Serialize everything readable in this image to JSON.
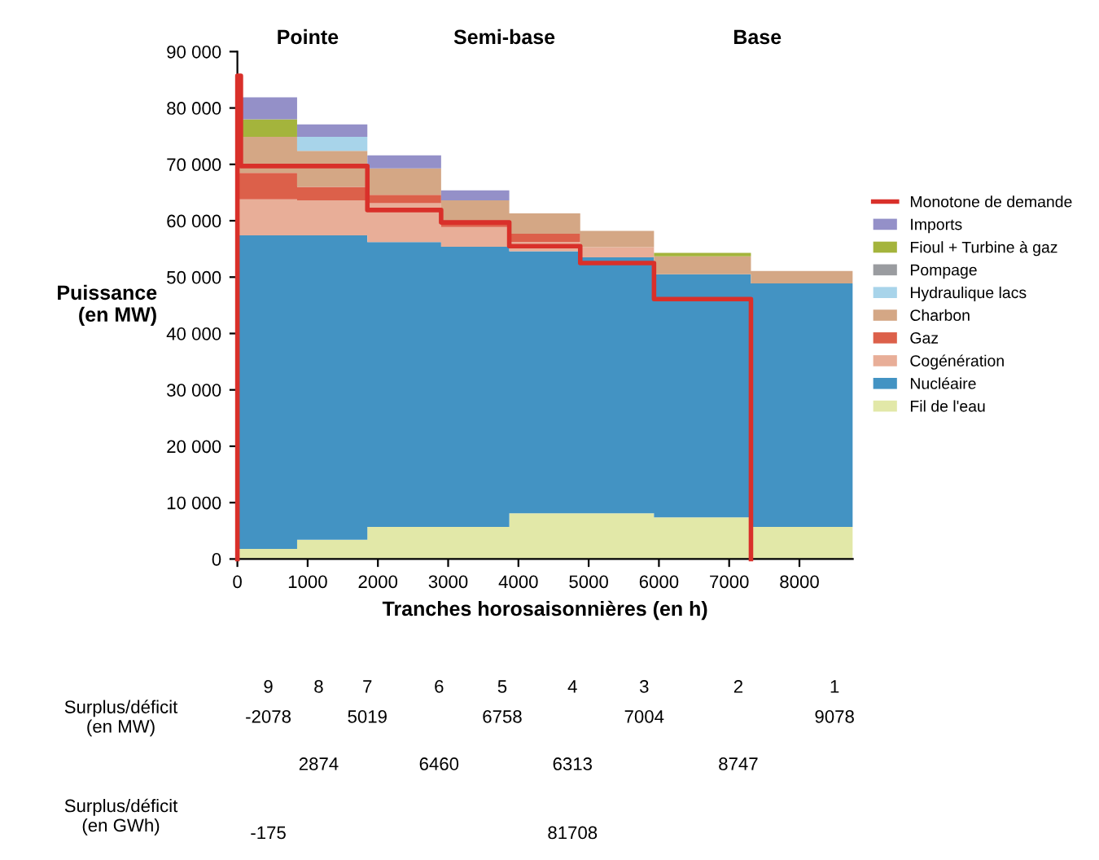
{
  "chart_data": {
    "type": "area",
    "stacked": true,
    "xlabel": "Tranches horosaisonnières (en h)",
    "ylabel": "Puissance\n(en MW)",
    "x": [
      0,
      850,
      850,
      1850,
      1850,
      2900,
      2900,
      3870,
      3870,
      4880,
      4880,
      5930,
      5930,
      7310,
      7310,
      8760
    ],
    "series": [
      {
        "name": "Fil de l'eau",
        "color": "#e2e8a8",
        "values": [
          1800,
          1800,
          3400,
          3400,
          5700,
          5700,
          5700,
          5700,
          8100,
          8100,
          8100,
          8100,
          7400,
          7400,
          5700,
          5700
        ]
      },
      {
        "name": "Nucléaire",
        "color": "#4393c3",
        "values": [
          55600,
          55600,
          54000,
          54000,
          50500,
          50500,
          49700,
          49700,
          46500,
          46500,
          45400,
          45400,
          43100,
          43100,
          43200,
          43200
        ]
      },
      {
        "name": "Cogénération",
        "color": "#e8ae98",
        "values": [
          6400,
          6400,
          6200,
          6200,
          6900,
          6900,
          3500,
          3500,
          1600,
          1600,
          1800,
          1800,
          0,
          0,
          0,
          0
        ]
      },
      {
        "name": "Gaz",
        "color": "#dc604a",
        "values": [
          4700,
          4700,
          2400,
          2400,
          1500,
          1500,
          1000,
          1000,
          1500,
          1500,
          0,
          0,
          0,
          0,
          0,
          0
        ]
      },
      {
        "name": "Charbon",
        "color": "#d4a785",
        "values": [
          6400,
          6400,
          6400,
          6400,
          4700,
          4700,
          3700,
          3700,
          3600,
          3600,
          2900,
          2900,
          3200,
          3200,
          2200,
          2200
        ]
      },
      {
        "name": "Hydraulique lacs",
        "color": "#a8d4ea",
        "values": [
          0,
          0,
          2500,
          2500,
          0,
          0,
          0,
          0,
          0,
          0,
          0,
          0,
          0,
          0,
          0,
          0
        ]
      },
      {
        "name": "Pompage",
        "color": "#9a9ca0",
        "values": [
          null,
          null,
          null,
          null,
          null,
          null,
          null,
          null,
          null,
          null,
          null,
          null,
          null,
          null,
          null,
          null
        ]
      },
      {
        "name": "Fioul + Turbine à gaz",
        "color": "#a4b43c",
        "values": [
          3100,
          3100,
          0,
          0,
          0,
          0,
          0,
          0,
          0,
          0,
          0,
          0,
          600,
          600,
          0,
          0
        ]
      },
      {
        "name": "Imports",
        "color": "#9490c8",
        "values": [
          3900,
          3900,
          2200,
          2200,
          2300,
          2300,
          1800,
          1800,
          0,
          0,
          0,
          0,
          0,
          0,
          0,
          0
        ]
      },
      {
        "name": "Monotone de demande",
        "type": "line",
        "color": "#d9302a",
        "x": [
          0,
          0,
          50,
          50,
          1850,
          1850,
          2900,
          2900,
          3870,
          3870,
          4880,
          4880,
          5930,
          5930,
          7310,
          7310
        ],
        "values": [
          0,
          85700,
          85700,
          69700,
          69700,
          61900,
          61900,
          59700,
          59700,
          55500,
          55500,
          52500,
          52500,
          46100,
          46100,
          0
        ]
      }
    ],
    "xlim": [
      0,
      8760
    ],
    "xticks": [
      0,
      1000,
      2000,
      3000,
      4000,
      5000,
      6000,
      7000,
      8000
    ],
    "ylim": [
      0,
      90000
    ],
    "yticks": [
      0,
      {
        "value": 10000,
        "label": "10 000"
      },
      {
        "value": 20000,
        "label": "20 000"
      },
      {
        "value": 30000,
        "label": "30 000"
      },
      {
        "value": 40000,
        "label": "40 000"
      },
      {
        "value": 50000,
        "label": "50 000"
      },
      {
        "value": 60000,
        "label": "60 000"
      },
      {
        "value": 70000,
        "label": "70 000"
      },
      {
        "value": 80000,
        "label": "80 000"
      },
      {
        "value": 90000,
        "label": "90 000"
      }
    ],
    "grid": false,
    "legend": "right",
    "annotations": [
      "Pointe",
      "Semi-base",
      "Base",
      "Surplus/déficit\n(en MW)",
      "9",
      "8",
      "7",
      "6",
      "5",
      "4",
      "3",
      "2",
      "1",
      "-2078",
      "2874",
      "5019",
      "6460",
      "6758",
      "6313",
      "7004",
      "8747",
      "9078",
      "Surplus/déficit\n(en GWh)",
      "-175",
      "81708"
    ]
  }
}
